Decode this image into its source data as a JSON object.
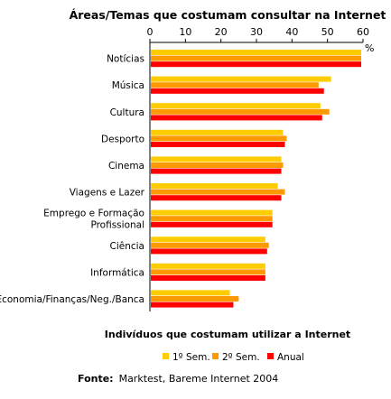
{
  "chart_data": {
    "type": "bar",
    "orientation": "horizontal",
    "title": "Áreas/Temas que costumam consultar na Internet",
    "unit": "%",
    "xlim": [
      0,
      60
    ],
    "ticks": [
      "0",
      "10",
      "20",
      "30",
      "40",
      "50",
      "60"
    ],
    "categories": [
      [
        "Notícias"
      ],
      [
        "Música"
      ],
      [
        "Cultura"
      ],
      [
        "Desporto"
      ],
      [
        "Cinema"
      ],
      [
        "Viagens e Lazer"
      ],
      [
        "Emprego e Formação",
        "Profissional"
      ],
      [
        "Ciência"
      ],
      [
        "Informática"
      ],
      [
        "Economia/Finanças/Neg./Banca"
      ]
    ],
    "series": [
      {
        "name": "1º Sem.",
        "color": "#FFCC00",
        "values": [
          59.5,
          51.0,
          48.0,
          37.5,
          37.0,
          36.0,
          34.5,
          32.5,
          32.5,
          22.5
        ]
      },
      {
        "name": "2º Sem.",
        "color": "#FF9900",
        "values": [
          59.5,
          47.5,
          50.5,
          38.5,
          37.5,
          38.0,
          34.5,
          33.5,
          32.5,
          25.0
        ]
      },
      {
        "name": "Anual",
        "color": "#FF0000",
        "values": [
          59.5,
          49.0,
          48.5,
          38.0,
          37.0,
          37.0,
          34.5,
          33.0,
          32.5,
          23.5
        ]
      }
    ],
    "grid": false,
    "legend_position": "bottom",
    "subtitle": "Indivíduos que costumam utilizar a Internet",
    "source_label": "Fonte:",
    "source_text": "Marktest, Bareme Internet 2004"
  }
}
